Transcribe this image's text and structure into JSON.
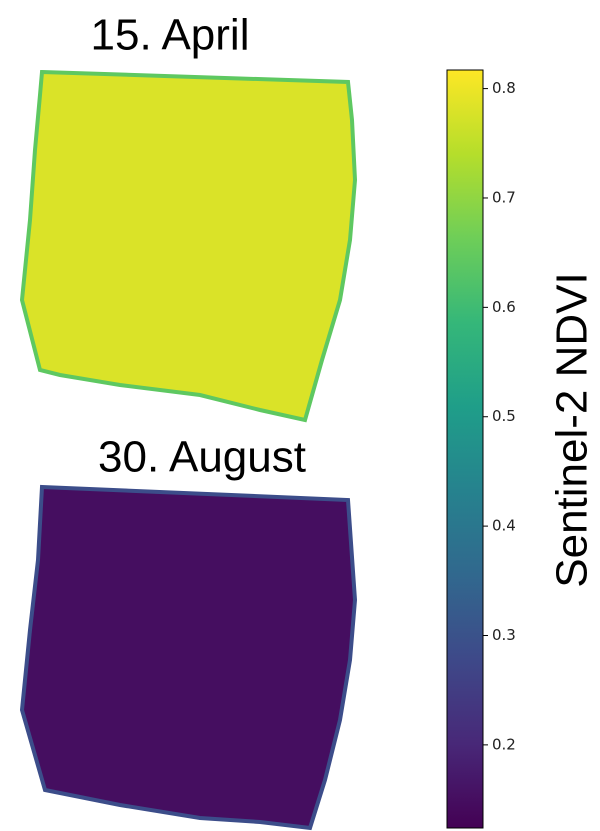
{
  "chart_data": {
    "type": "image",
    "colormap": "viridis",
    "panels": [
      {
        "title": "15. April",
        "value": 0.78
      },
      {
        "title": "30. August",
        "value": 0.15
      }
    ],
    "colorbar": {
      "label": "Sentinel-2 NDVI",
      "ylim": [
        0.124,
        0.817
      ],
      "yticks": [
        0.2,
        0.3,
        0.4,
        0.5,
        0.6,
        0.7,
        0.8
      ]
    }
  }
}
